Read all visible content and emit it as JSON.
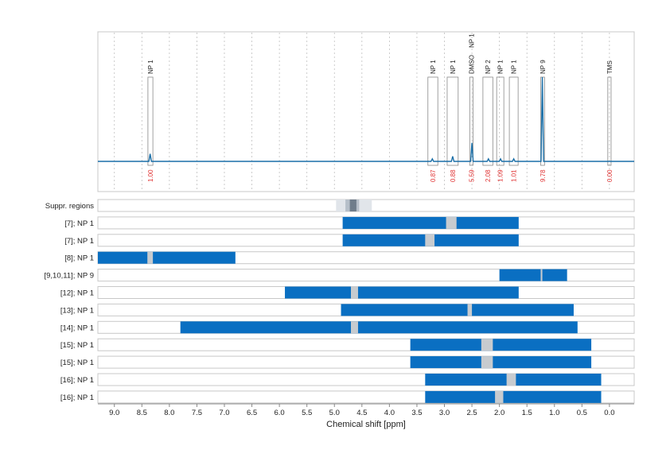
{
  "chart_data": {
    "type": "nmr-spectrum",
    "xlabel": "Chemical shift [ppm]",
    "x_range": [
      9.3,
      -0.45
    ],
    "x_ticks": [
      "9.0",
      "8.5",
      "8.0",
      "7.5",
      "7.0",
      "6.5",
      "6.0",
      "5.5",
      "5.0",
      "4.5",
      "4.0",
      "3.5",
      "3.0",
      "2.5",
      "2.0",
      "1.5",
      "1.0",
      "0.5",
      "0.0"
    ],
    "colors": {
      "spectrum": "#1a6fa8",
      "bar": "#0a6fc2",
      "gap": "#c7cbcf",
      "integral": "#e03030",
      "grid": "#bfbfbf"
    },
    "peaks": [
      {
        "label": "NP 1",
        "x_from": 8.39,
        "x_to": 8.3,
        "height": 0.09,
        "peak_x": 8.35,
        "integral": "1.00"
      },
      {
        "label": "NP 1",
        "x_from": 3.3,
        "x_to": 3.12,
        "height": 0.03,
        "peak_x": 3.22,
        "integral": "0.87"
      },
      {
        "label": "NP 1",
        "x_from": 2.95,
        "x_to": 2.75,
        "height": 0.06,
        "peak_x": 2.85,
        "integral": "0.88"
      },
      {
        "label": "DMSO",
        "x_from": 2.54,
        "x_to": 2.48,
        "height": 0.22,
        "peak_x": 2.5,
        "integral": "5.59",
        "label_extra": "NP 1"
      },
      {
        "label": "NP 2",
        "x_from": 2.3,
        "x_to": 2.12,
        "height": 0.03,
        "peak_x": 2.2,
        "integral": "2.08"
      },
      {
        "label": "NP 1",
        "x_from": 2.05,
        "x_to": 1.92,
        "height": 0.03,
        "peak_x": 1.98,
        "integral": "1.09"
      },
      {
        "label": "NP 1",
        "x_from": 1.82,
        "x_to": 1.66,
        "height": 0.03,
        "peak_x": 1.74,
        "integral": "1.01"
      },
      {
        "label": "NP 9",
        "x_from": 1.25,
        "x_to": 1.18,
        "height": 1.0,
        "peak_x": 1.22,
        "integral": "9.78"
      },
      {
        "label": "TMS",
        "x_from": 0.03,
        "x_to": -0.03,
        "height": 0.0,
        "peak_x": 0.0,
        "integral": "0.00"
      }
    ],
    "suppressed_regions": {
      "label": "Suppr. regions",
      "outer": [
        4.97,
        4.32
      ],
      "mid": [
        4.8,
        4.55
      ],
      "inner": [
        4.72,
        4.6
      ]
    },
    "rows": [
      {
        "label": "[7]; NP 1",
        "from": 4.85,
        "to": 1.65,
        "gap": [
          2.97,
          2.78
        ]
      },
      {
        "label": "[7]; NP 1",
        "from": 4.85,
        "to": 1.65,
        "gap": [
          3.35,
          3.18
        ]
      },
      {
        "label": "[8]; NP 1",
        "from": 9.3,
        "to": 6.8,
        "gap": [
          8.4,
          8.3
        ]
      },
      {
        "label": "[9,10,11]; NP 9",
        "from": 2.0,
        "to": 0.77,
        "gap": [
          1.25,
          1.22
        ]
      },
      {
        "label": "[12]; NP 1",
        "from": 5.9,
        "to": 1.65,
        "gap": [
          4.7,
          4.57
        ]
      },
      {
        "label": "[13]; NP 1",
        "from": 4.88,
        "to": 0.65,
        "gap": [
          2.58,
          2.5
        ]
      },
      {
        "label": "[14]; NP 1",
        "from": 7.8,
        "to": 0.58,
        "gap": [
          4.7,
          4.57
        ]
      },
      {
        "label": "[15]; NP 1",
        "from": 3.62,
        "to": 0.33,
        "gap": [
          2.33,
          2.12
        ]
      },
      {
        "label": "[15]; NP 1",
        "from": 3.62,
        "to": 0.33,
        "gap": [
          2.33,
          2.12
        ]
      },
      {
        "label": "[16]; NP 1",
        "from": 3.35,
        "to": 0.15,
        "gap": [
          1.87,
          1.7
        ]
      },
      {
        "label": "[16]; NP 1",
        "from": 3.35,
        "to": 0.15,
        "gap": [
          2.08,
          1.93
        ]
      }
    ]
  }
}
